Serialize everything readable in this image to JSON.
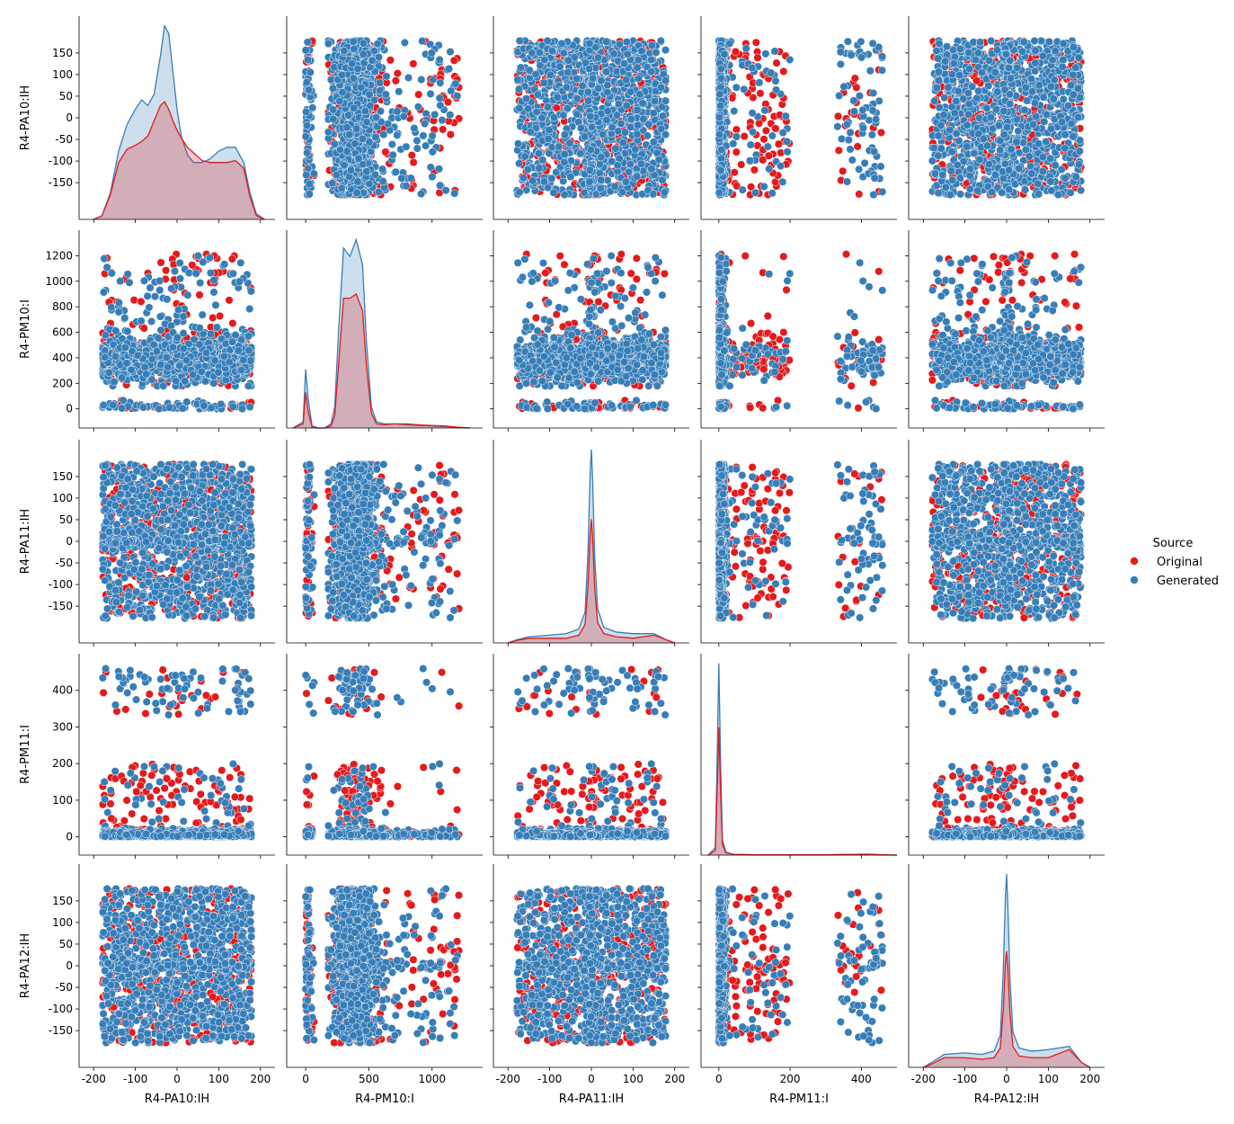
{
  "chart_data": {
    "type": "scatter",
    "kind": "pairplot",
    "variables": [
      "R4-PA10:IH",
      "R4-PM10:I",
      "R4-PA11:IH",
      "R4-PM11:I",
      "R4-PA12:IH"
    ],
    "legend": {
      "title": "Source",
      "entries": [
        {
          "name": "Original",
          "color": "#e41a1c"
        },
        {
          "name": "Generated",
          "color": "#377eb8"
        }
      ],
      "placement": "right"
    },
    "axes": [
      {
        "name": "R4-PA10:IH",
        "lim": [
          -235,
          235
        ],
        "ticks": [
          -150,
          -100,
          -50,
          0,
          50,
          100,
          150
        ],
        "bottom_ticks": [
          -200,
          -100,
          0,
          100,
          200
        ]
      },
      {
        "name": "R4-PM10:I",
        "lim": [
          -150,
          1400
        ],
        "ticks": [
          0,
          200,
          400,
          600,
          800,
          1000,
          1200
        ],
        "bottom_ticks": [
          0,
          500,
          1000
        ]
      },
      {
        "name": "R4-PA11:IH",
        "lim": [
          -235,
          235
        ],
        "ticks": [
          -150,
          -100,
          -50,
          0,
          50,
          100,
          150
        ],
        "bottom_ticks": [
          -200,
          -100,
          0,
          100,
          200
        ]
      },
      {
        "name": "R4-PM11:I",
        "lim": [
          -50,
          500
        ],
        "ticks": [
          0,
          100,
          200,
          300,
          400
        ],
        "bottom_ticks": [
          0,
          200,
          400
        ]
      },
      {
        "name": "R4-PA12:IH",
        "lim": [
          -235,
          235
        ],
        "ticks": [
          -150,
          -100,
          -50,
          0,
          50,
          100,
          150
        ],
        "bottom_ticks": [
          -200,
          -100,
          0,
          100,
          200
        ]
      }
    ],
    "diagonal_kde": [
      {
        "variable": "R4-PA10:IH",
        "series": [
          {
            "name": "Generated",
            "x": [
              -200,
              -180,
              -160,
              -140,
              -120,
              -100,
              -85,
              -70,
              -55,
              -40,
              -30,
              -20,
              -10,
              0,
              10,
              25,
              40,
              60,
              80,
              100,
              120,
              140,
              160,
              175,
              190,
              210
            ],
            "y": [
              0,
              2,
              14,
              36,
              50,
              58,
              63,
              60,
              66,
              86,
              102,
              98,
              78,
              58,
              44,
              34,
              30,
              30,
              32,
              36,
              38,
              38,
              30,
              14,
              3,
              0
            ]
          },
          {
            "name": "Original",
            "x": [
              -200,
              -180,
              -160,
              -140,
              -120,
              -100,
              -85,
              -70,
              -55,
              -40,
              -30,
              -20,
              -10,
              0,
              10,
              25,
              40,
              60,
              80,
              100,
              120,
              140,
              160,
              175,
              190,
              210
            ],
            "y": [
              0,
              2,
              13,
              30,
              37,
              39,
              41,
              44,
              52,
              60,
              62,
              58,
              52,
              47,
              43,
              38,
              35,
              31,
              30,
              30,
              30,
              31,
              27,
              12,
              2,
              0
            ]
          }
        ]
      },
      {
        "variable": "R4-PM10:I",
        "series": [
          {
            "name": "Generated",
            "x": [
              -100,
              -20,
              0,
              20,
              50,
              100,
              150,
              200,
              230,
              260,
              300,
              350,
              400,
              450,
              480,
              520,
              560,
              620,
              700,
              800,
              900,
              1000,
              1100,
              1200,
              1300
            ],
            "y": [
              0,
              3,
              28,
              14,
              1,
              0,
              0,
              2,
              10,
              46,
              86,
              82,
              90,
              78,
              42,
              10,
              3,
              2,
              2,
              1.5,
              1.2,
              1,
              0.7,
              0.3,
              0
            ]
          },
          {
            "name": "Original",
            "x": [
              -100,
              -20,
              0,
              20,
              50,
              100,
              150,
              200,
              230,
              260,
              300,
              350,
              400,
              450,
              480,
              520,
              560,
              620,
              700,
              800,
              900,
              1000,
              1100,
              1200,
              1300
            ],
            "y": [
              0,
              2,
              17,
              8,
              0.5,
              0,
              0,
              1,
              6,
              30,
              62,
              62,
              64,
              56,
              30,
              7,
              2,
              1.5,
              2,
              2,
              1.5,
              1.2,
              1,
              0.4,
              0
            ]
          }
        ]
      },
      {
        "variable": "R4-PA11:IH",
        "series": [
          {
            "name": "Generated",
            "x": [
              -200,
              -180,
              -150,
              -100,
              -60,
              -30,
              -15,
              -8,
              -3,
              0,
              3,
              8,
              15,
              30,
              60,
              100,
              150,
              180,
              200
            ],
            "y": [
              0,
              2,
              4,
              5,
              6,
              9,
              20,
              60,
              110,
              125,
              105,
              55,
              22,
              10,
              7,
              6,
              6,
              2,
              0
            ]
          },
          {
            "name": "Original",
            "x": [
              -200,
              -180,
              -150,
              -100,
              -60,
              -30,
              -15,
              -8,
              -3,
              0,
              3,
              8,
              15,
              30,
              60,
              100,
              150,
              180,
              200
            ],
            "y": [
              0,
              1.5,
              3,
              3,
              3,
              5,
              12,
              38,
              70,
              80,
              68,
              35,
              13,
              6,
              4,
              3,
              5,
              2,
              0
            ]
          }
        ]
      },
      {
        "variable": "R4-PM11:I",
        "series": [
          {
            "name": "Generated",
            "x": [
              -30,
              -10,
              -5,
              0,
              5,
              10,
              20,
              40,
              100,
              300,
              380,
              420,
              460,
              500
            ],
            "y": [
              0,
              5,
              60,
              126,
              60,
              10,
              2,
              0.5,
              0.2,
              0.2,
              0.5,
              0.6,
              0.2,
              0
            ]
          },
          {
            "name": "Original",
            "x": [
              -30,
              -10,
              -5,
              0,
              5,
              10,
              20,
              40,
              100,
              300,
              380,
              420,
              460,
              500
            ],
            "y": [
              0,
              3,
              40,
              84,
              40,
              7,
              1.5,
              0.5,
              0.2,
              0.2,
              0.5,
              0.6,
              0.2,
              0
            ]
          }
        ]
      },
      {
        "variable": "R4-PA12:IH",
        "series": [
          {
            "name": "Generated",
            "x": [
              -200,
              -180,
              -150,
              -100,
              -60,
              -30,
              -15,
              -8,
              -3,
              0,
              3,
              8,
              15,
              30,
              60,
              100,
              150,
              180,
              200
            ],
            "y": [
              0,
              3,
              8,
              9,
              8,
              10,
              20,
              60,
              105,
              120,
              100,
              55,
              22,
              12,
              10,
              11,
              13,
              3,
              0
            ]
          },
          {
            "name": "Original",
            "x": [
              -200,
              -180,
              -150,
              -100,
              -60,
              -30,
              -15,
              -8,
              -3,
              0,
              3,
              8,
              15,
              30,
              60,
              100,
              150,
              180,
              200
            ],
            "y": [
              0,
              2,
              6,
              6,
              5,
              6,
              12,
              36,
              65,
              72,
              62,
              34,
              13,
              7,
              6,
              6,
              11,
              3,
              0
            ]
          }
        ]
      }
    ]
  }
}
